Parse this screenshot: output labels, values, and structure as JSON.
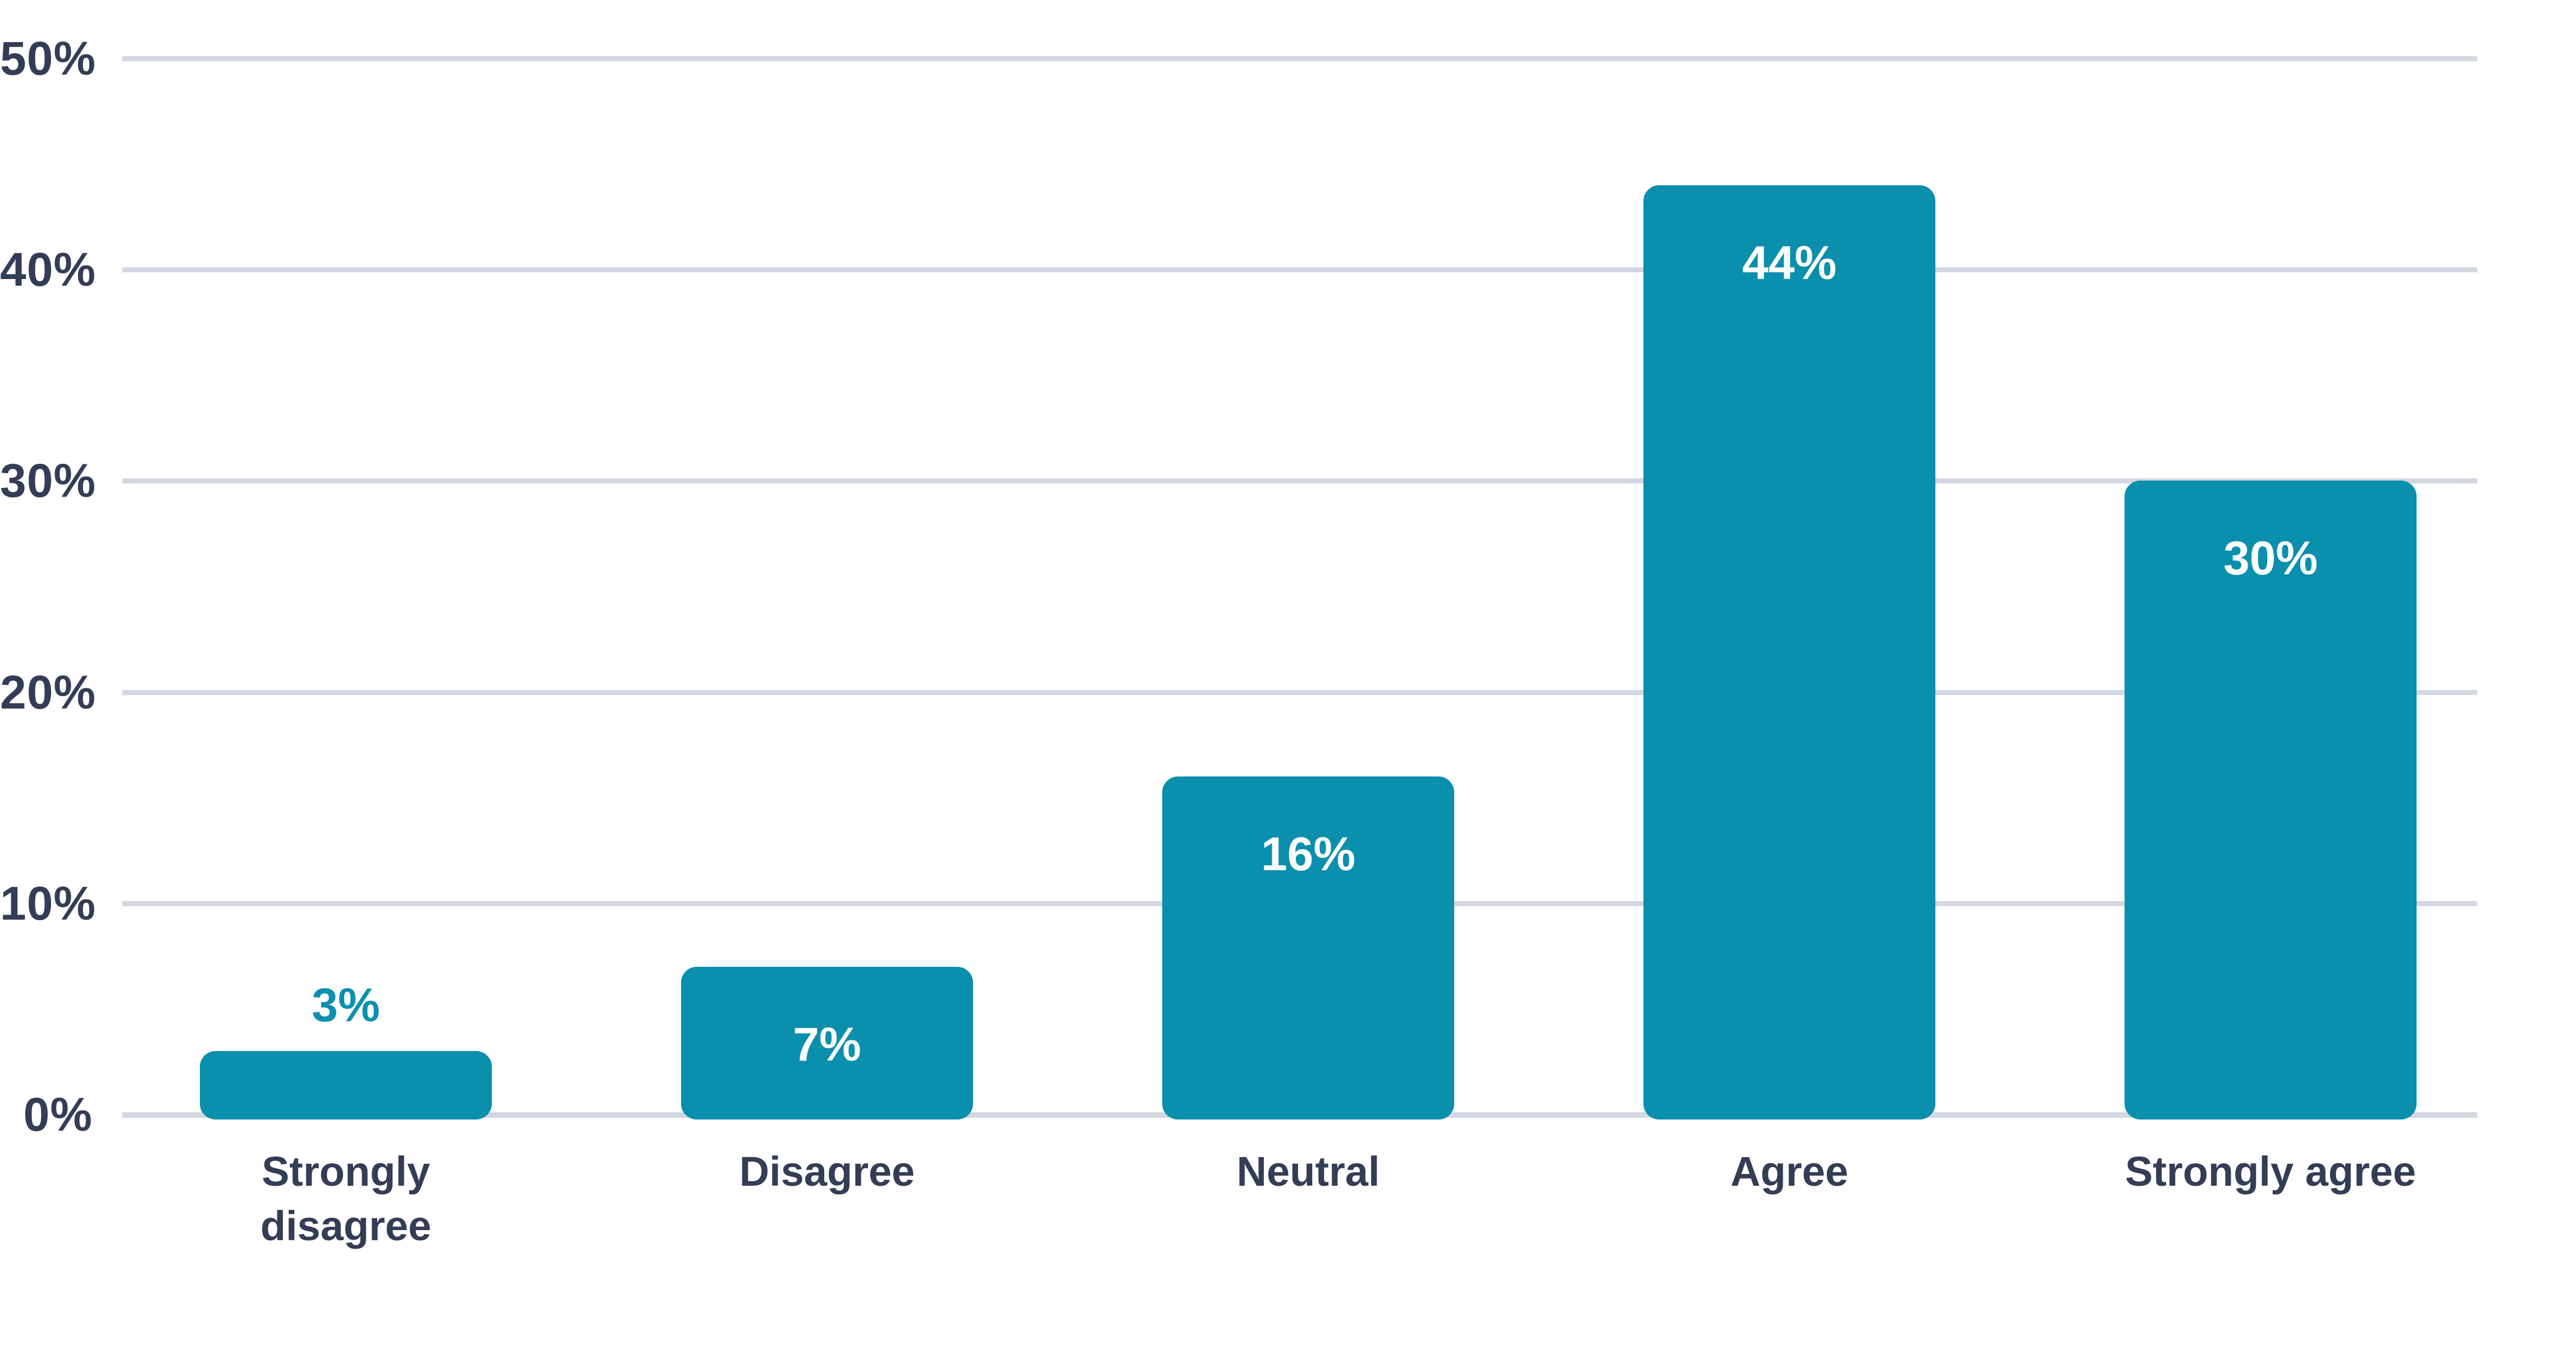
{
  "chart_data": {
    "type": "bar",
    "categories": [
      "Strongly disagree",
      "Disagree",
      "Neutral",
      "Agree",
      "Strongly agree"
    ],
    "values": [
      3,
      7,
      16,
      44,
      30
    ],
    "value_labels": [
      "3%",
      "7%",
      "16%",
      "44%",
      "30%"
    ],
    "value_label_placement": [
      "above",
      "inside",
      "inside",
      "inside",
      "inside"
    ],
    "y_tick_values": [
      0,
      10,
      20,
      30,
      40,
      50
    ],
    "y_tick_labels": [
      "0%",
      "10%",
      "20%",
      "30%",
      "40%",
      "50%"
    ],
    "ylim": [
      0,
      50
    ],
    "grid": "horizontal-on",
    "legend": "none",
    "title": "",
    "xlabel": "",
    "ylabel": "",
    "colors": {
      "bar_fill": "#0A90AC",
      "label_above_bar": "#0C90B0",
      "label_inside_bar": "#FFFFFF",
      "axis_text": "#333D55",
      "gridline": "#D3D7E2",
      "background": "#FFFFFF"
    }
  }
}
